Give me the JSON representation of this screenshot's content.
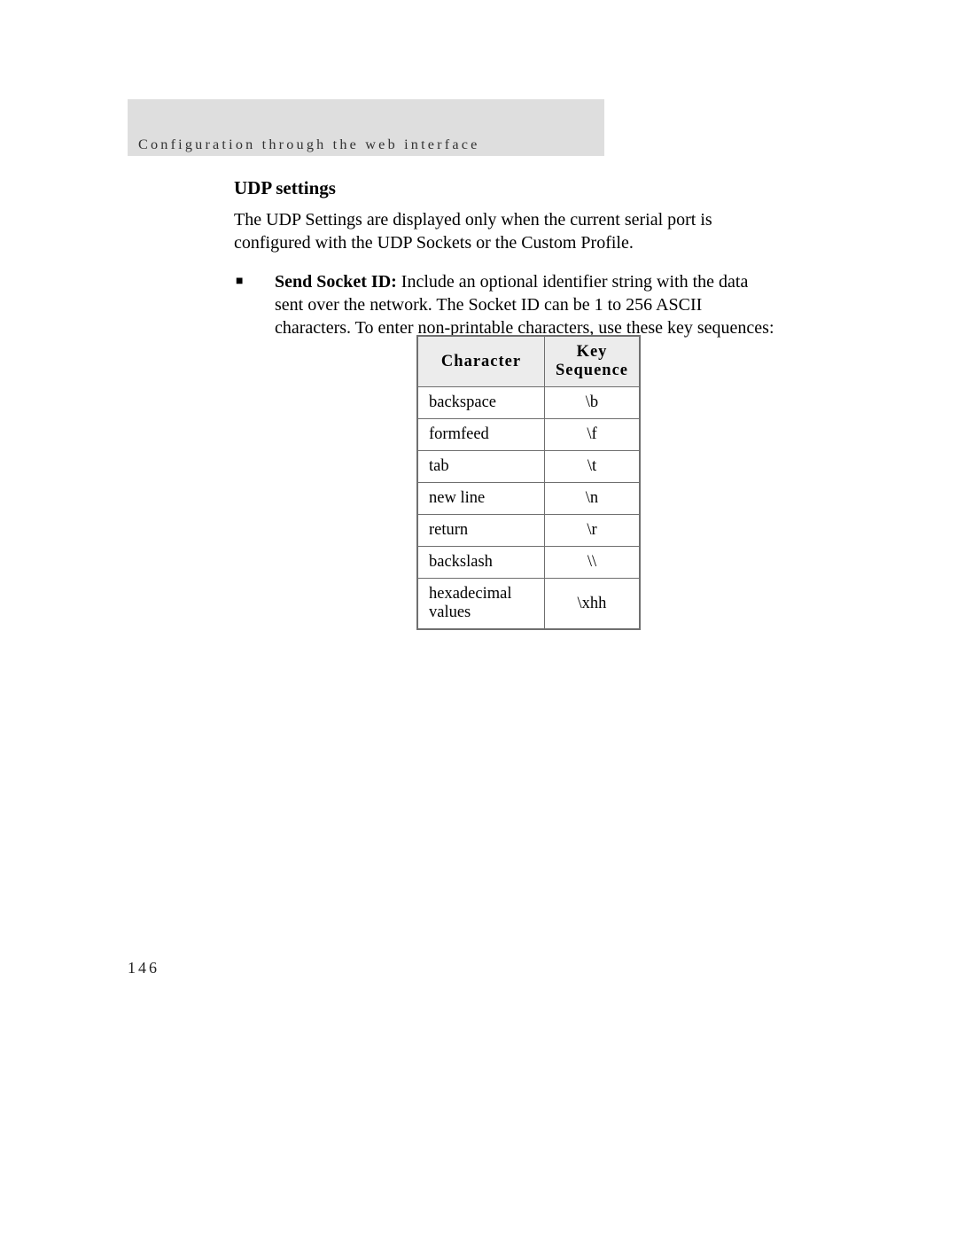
{
  "header": {
    "running_title": "Configuration through the web interface"
  },
  "section": {
    "heading": "UDP settings",
    "intro_paragraph": "The UDP Settings are displayed only when the current serial port is configured with the UDP Sockets or the Custom Profile.",
    "bullet": {
      "marker": "■",
      "bold_lead": "Send Socket ID:",
      "rest": " Include an optional identifier string with the data sent over the network. The Socket ID can be 1 to 256 ASCII characters. To enter non-printable characters, use these key sequences:"
    }
  },
  "table": {
    "headers": {
      "character": "Character",
      "key_sequence_line1": "Key",
      "key_sequence_line2": "Sequence"
    },
    "rows": [
      {
        "character": "backspace",
        "sequence": "\\b"
      },
      {
        "character": "formfeed",
        "sequence": "\\f"
      },
      {
        "character": "tab",
        "sequence": "\\t"
      },
      {
        "character": "new line",
        "sequence": "\\n"
      },
      {
        "character": "return",
        "sequence": "\\r"
      },
      {
        "character": "backslash",
        "sequence": "\\\\"
      },
      {
        "character": "hexadecimal values",
        "sequence": "\\xhh"
      }
    ]
  },
  "footer": {
    "page_number": "146"
  },
  "style": {
    "header_band_color": "#dedede",
    "table_header_bg": "#ececec",
    "table_border_color": "#6f6f6f",
    "body_font": "Times New Roman"
  }
}
